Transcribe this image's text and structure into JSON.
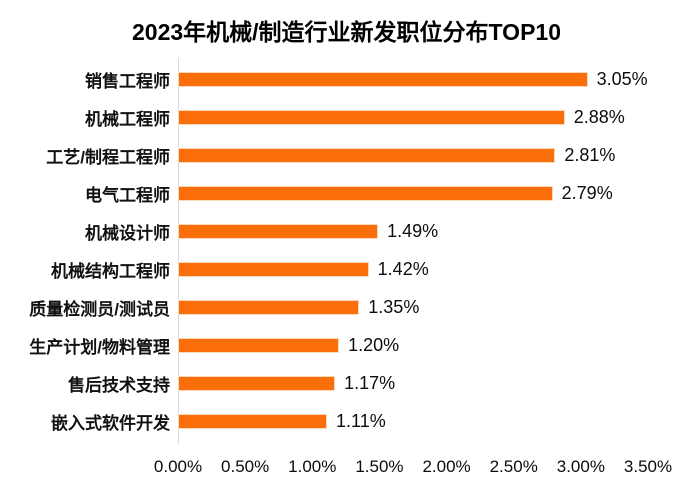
{
  "page": {
    "background": "#FFFFFF"
  },
  "chart_data": {
    "type": "bar",
    "orientation": "horizontal",
    "title": "2023年机械/制造行业新发职位分布TOP10",
    "categories": [
      "销售工程师",
      "机械工程师",
      "工艺/制程工程师",
      "电气工程师",
      "机械设计师",
      "机械结构工程师",
      "质量检测员/测试员",
      "生产计划/物料管理",
      "售后技术支持",
      "嵌入式软件开发"
    ],
    "values": [
      3.05,
      2.88,
      2.81,
      2.79,
      1.49,
      1.42,
      1.35,
      1.2,
      1.17,
      1.11
    ],
    "value_labels": [
      "3.05%",
      "2.88%",
      "2.81%",
      "2.79%",
      "1.49%",
      "1.42%",
      "1.35%",
      "1.20%",
      "1.17%",
      "1.11%"
    ],
    "x_tick_labels": [
      "0.00%",
      "0.50%",
      "1.00%",
      "1.50%",
      "2.00%",
      "2.50%",
      "3.00%",
      "3.50%"
    ],
    "xlim": [
      0,
      3.5
    ],
    "xlabel": "",
    "ylabel": "",
    "grid": false,
    "legend": false,
    "bar_color": "#FA6E0B",
    "axis_line_color": "#D9D9D9",
    "text_color": "#0C0C0C"
  }
}
